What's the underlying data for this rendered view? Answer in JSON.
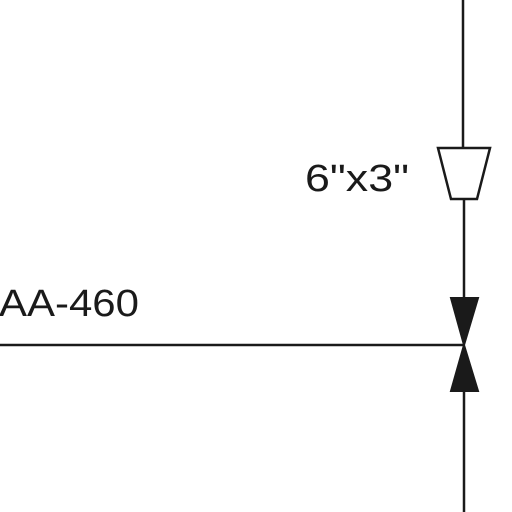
{
  "diagram": {
    "reducer_label": "6\"x3\"",
    "line_label": "AA-460",
    "colors": {
      "line": "#1a1a1a",
      "background": "#ffffff"
    }
  }
}
